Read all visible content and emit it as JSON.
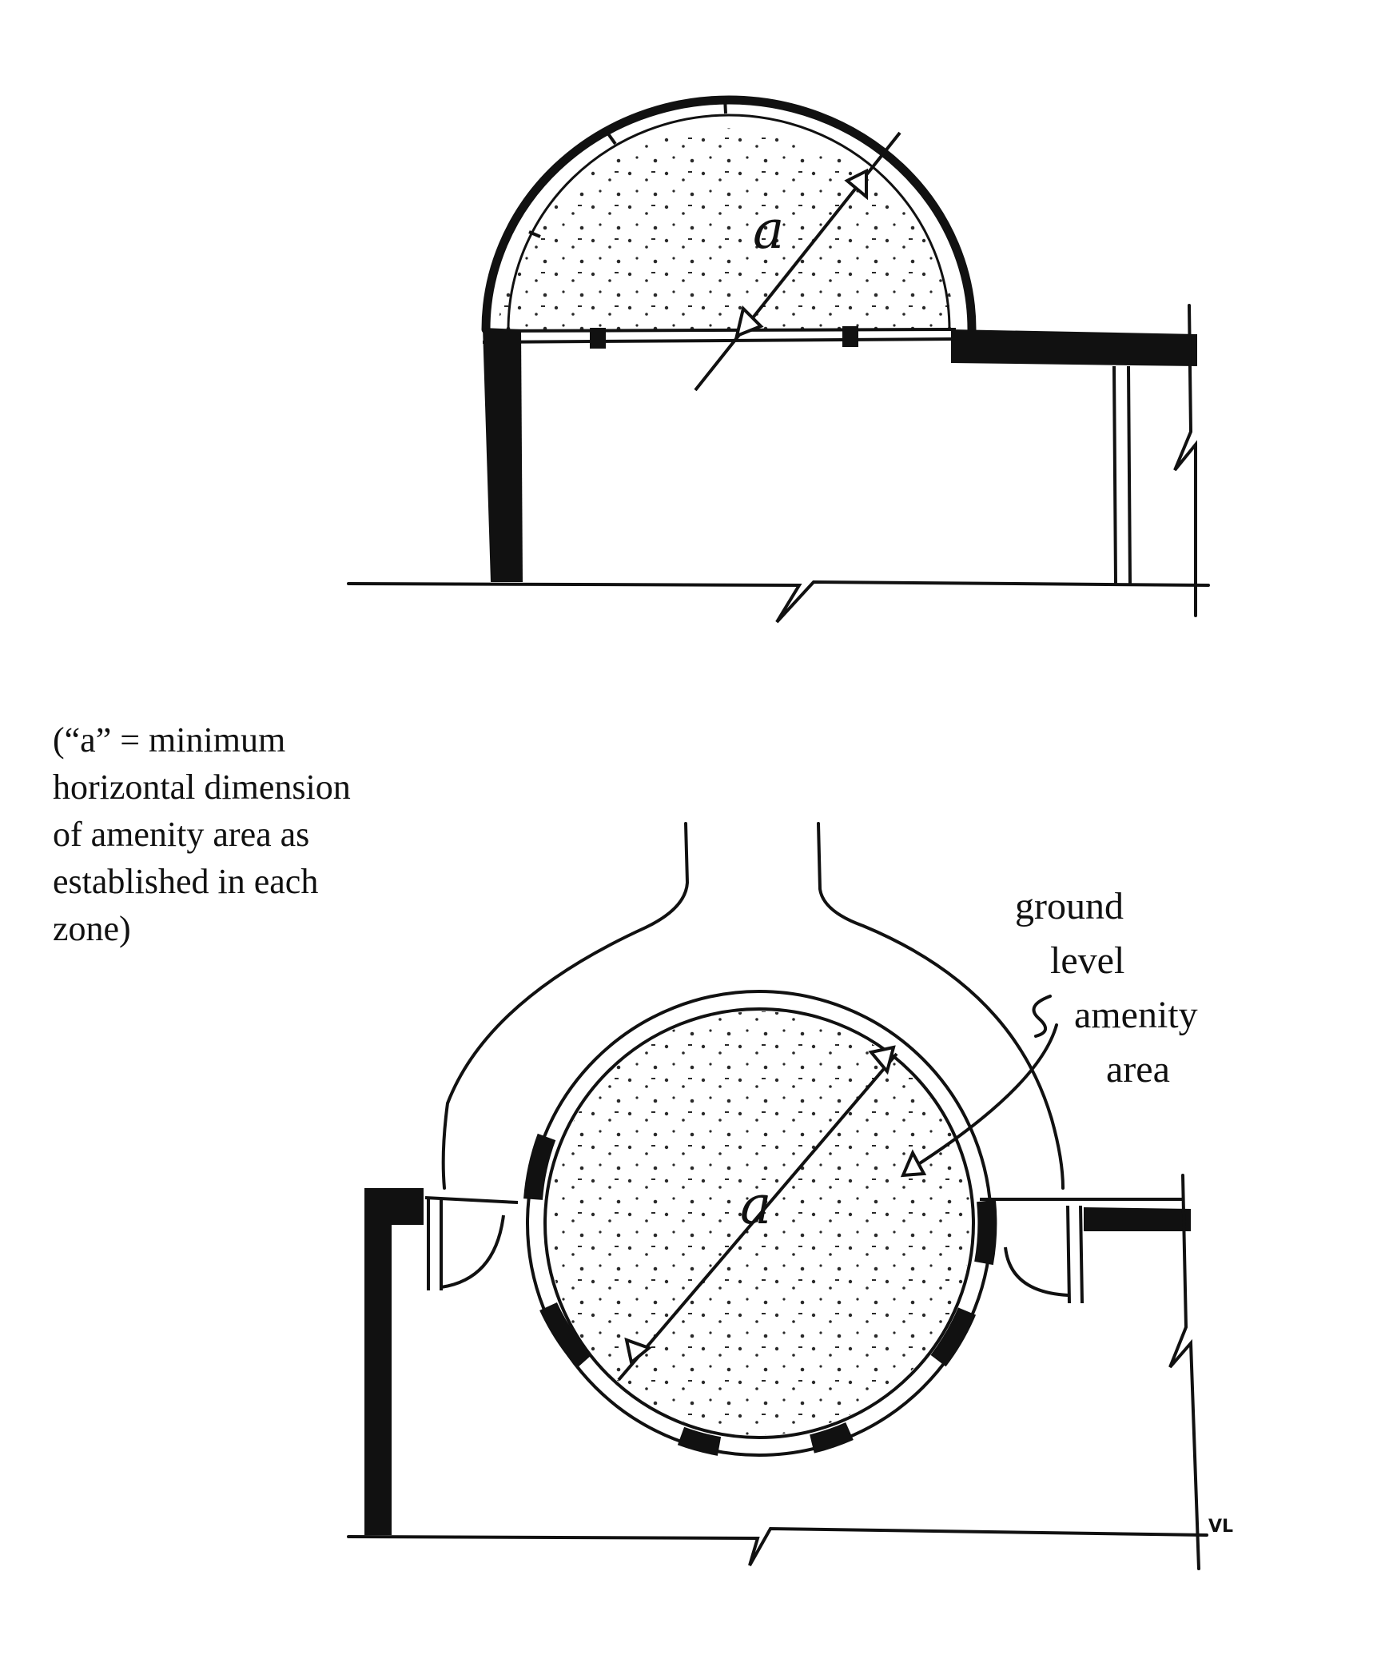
{
  "caption": {
    "lines": [
      "(“a” = minimum",
      "horizontal dimension",
      "of amenity area as",
      "established in each",
      "zone)"
    ]
  },
  "amenity_label": {
    "lines": [
      "ground",
      "level",
      "amenity",
      "area"
    ]
  },
  "dimension_symbol": "a",
  "artist_initials": "VL",
  "colors": {
    "ink": "#111111",
    "paper": "#ffffff",
    "stipple": "#2a2a2a"
  }
}
